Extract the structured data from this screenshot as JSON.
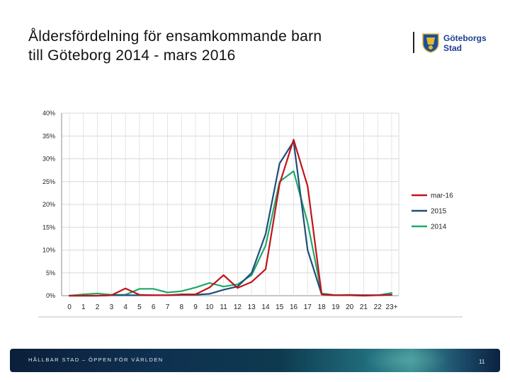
{
  "header": {
    "title_line1": "Åldersfördelning för ensamkommande barn",
    "title_line2": "till Göteborg 2014 - mars 2016"
  },
  "logo": {
    "line1": "Göteborgs",
    "line2": "Stad"
  },
  "footer": {
    "tagline": "HÅLLBAR STAD – ÖPPEN FÖR VÄRLDEN",
    "page_number": "11"
  },
  "colors": {
    "mar16": "#c0141b",
    "y2015": "#1f4e79",
    "y2014": "#1eaa6a",
    "grid": "#d9d9d9",
    "axis": "#8c8c8c"
  },
  "chart_data": {
    "type": "line",
    "title": "",
    "xlabel": "",
    "ylabel": "",
    "ylim": [
      0,
      40
    ],
    "yticks": [
      0,
      5,
      10,
      15,
      20,
      25,
      30,
      35,
      40
    ],
    "ytick_labels": [
      "0%",
      "5%",
      "10%",
      "15%",
      "20%",
      "25%",
      "30%",
      "35%",
      "40%"
    ],
    "categories": [
      "0",
      "1",
      "2",
      "3",
      "4",
      "5",
      "6",
      "7",
      "8",
      "9",
      "10",
      "11",
      "12",
      "13",
      "14",
      "15",
      "16",
      "17",
      "18",
      "19",
      "20",
      "21",
      "22",
      "23+"
    ],
    "series": [
      {
        "name": "mar-16",
        "color": "#c0141b",
        "values": [
          0,
          0,
          0,
          0.1,
          1.6,
          0.2,
          0.1,
          0.1,
          0.3,
          0.3,
          1.8,
          4.5,
          1.7,
          3.0,
          5.8,
          24.5,
          34.2,
          24.0,
          0.3,
          0.1,
          0.1,
          0,
          0.1,
          0.2
        ]
      },
      {
        "name": "2015",
        "color": "#1f4e79",
        "values": [
          0,
          0,
          0,
          0.1,
          0.1,
          0.1,
          0.1,
          0.1,
          0.2,
          0.2,
          0.4,
          1.3,
          2.0,
          5.0,
          13.5,
          29.0,
          33.8,
          10.0,
          0.3,
          0.1,
          0.1,
          0.1,
          0.1,
          0.2
        ]
      },
      {
        "name": "2014",
        "color": "#1eaa6a",
        "values": [
          0,
          0.3,
          0.5,
          0.2,
          0.2,
          1.5,
          1.5,
          0.7,
          1.0,
          1.8,
          2.8,
          2.0,
          2.5,
          4.5,
          11.0,
          25.0,
          27.3,
          16.0,
          0.5,
          0.1,
          0.2,
          0.1,
          0.1,
          0.6
        ]
      }
    ],
    "legend_position": "right",
    "grid": true
  }
}
